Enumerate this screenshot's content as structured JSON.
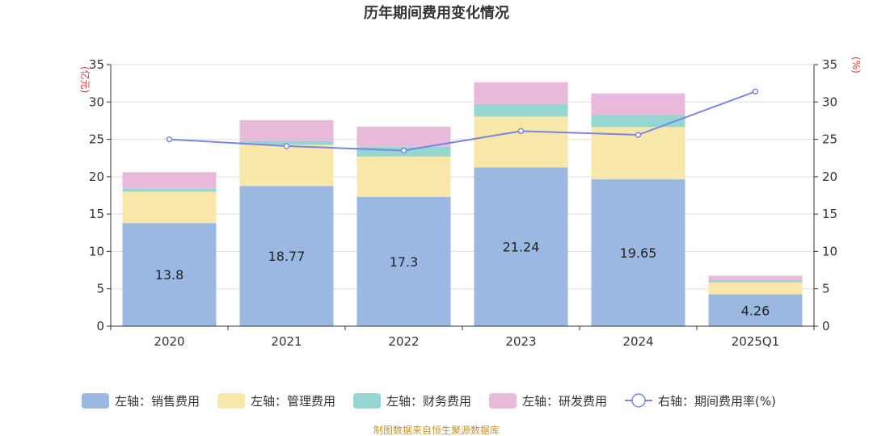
{
  "chart_data": {
    "type": "bar",
    "title": "历年期间费用变化情况",
    "categories": [
      "2020",
      "2021",
      "2022",
      "2023",
      "2024",
      "2025Q1"
    ],
    "left_axis": {
      "unit": "(亿元)",
      "min": 0,
      "max": 35,
      "step": 5
    },
    "right_axis": {
      "unit": "(%)",
      "min": 0,
      "max": 35,
      "step": 5
    },
    "series": [
      {
        "name": "左轴：销售费用",
        "color": "#9bb8e3",
        "values": [
          13.8,
          18.77,
          17.3,
          21.24,
          19.65,
          4.26
        ],
        "show_labels": true
      },
      {
        "name": "左轴：管理费用",
        "color": "#f8e7a8",
        "values": [
          4.2,
          5.5,
          5.4,
          6.8,
          7.0,
          1.6
        ]
      },
      {
        "name": "左轴：财务费用",
        "color": "#95d5d2",
        "values": [
          0.4,
          0.5,
          1.3,
          1.7,
          1.6,
          0.3
        ]
      },
      {
        "name": "左轴：研发费用",
        "color": "#e8b9db",
        "values": [
          2.2,
          2.8,
          2.7,
          2.9,
          2.9,
          0.6
        ]
      }
    ],
    "line": {
      "name": "右轴：期间费用率(%)",
      "color": "#7b84e6",
      "values": [
        25.0,
        24.1,
        23.5,
        26.1,
        25.6,
        31.4
      ]
    },
    "stacked": true,
    "grid": true,
    "legend_position": "bottom"
  },
  "source": "制图数据来自恒生聚源数据库"
}
